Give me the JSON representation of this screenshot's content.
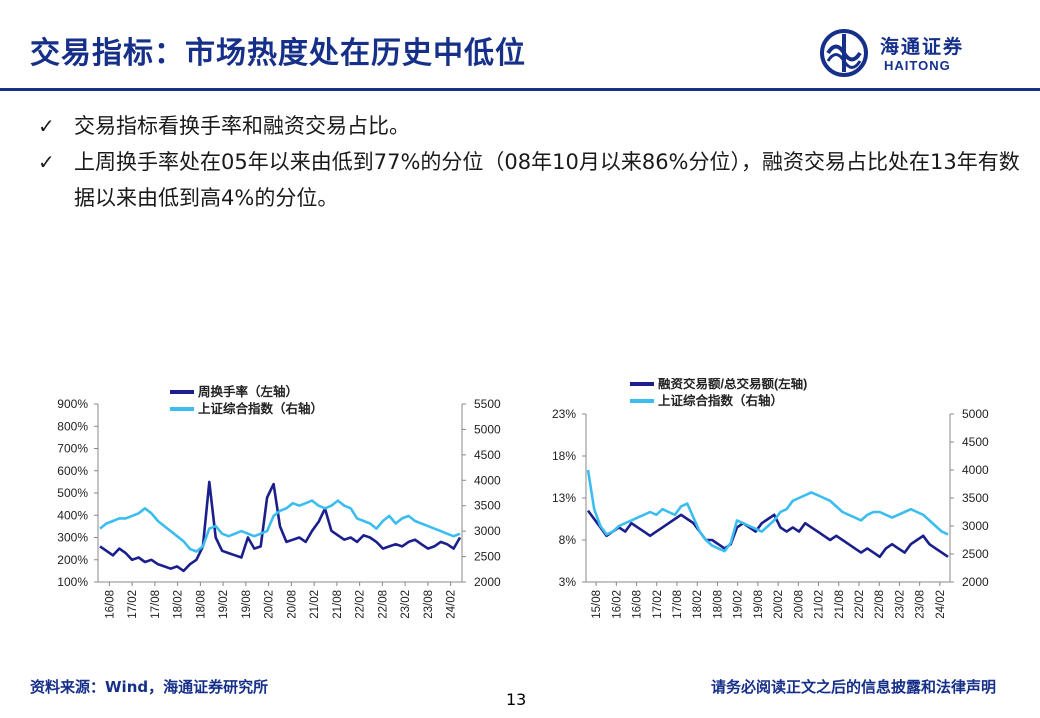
{
  "slide": {
    "title": "交易指标：市场热度处在历史中低位",
    "page_number": "13",
    "source": "资料来源：Wind，海通证券研究所",
    "disclaimer": "请务必阅读正文之后的信息披露和法律声明"
  },
  "logo": {
    "cn": "海通证券",
    "en": "HAITONG",
    "icon": "haitong-emblem-icon"
  },
  "bullets": [
    "交易指标看换手率和融资交易占比。",
    "上周换手率处在05年以来由低到77%的分位（08年10月以来86%分位），融资交易占比处在13年有数据以来由低到高4%的分位。"
  ],
  "colors": {
    "navy": "#16308a",
    "left_series": "#1a1f8c",
    "right_series": "#3bbdf0"
  },
  "chart_data": [
    {
      "type": "line",
      "legend_position": "top",
      "grid": false,
      "x_ticks": [
        "16/08",
        "17/02",
        "17/08",
        "18/02",
        "18/08",
        "19/02",
        "19/08",
        "20/02",
        "20/08",
        "21/02",
        "21/08",
        "22/02",
        "22/08",
        "23/02",
        "23/08",
        "24/02"
      ],
      "y_left_ticks": [
        "100%",
        "200%",
        "300%",
        "400%",
        "500%",
        "600%",
        "700%",
        "800%",
        "900%"
      ],
      "y_left_range": [
        100,
        900
      ],
      "y_right_ticks": [
        "2000",
        "2500",
        "3000",
        "3500",
        "4000",
        "4500",
        "5000",
        "5500"
      ],
      "y_right_range": [
        2000,
        5500
      ],
      "series": [
        {
          "name": "周换手率（左轴）",
          "axis": "left",
          "color": "#1a1f8c",
          "values": [
            260,
            240,
            220,
            250,
            230,
            200,
            210,
            190,
            200,
            180,
            170,
            160,
            170,
            150,
            180,
            200,
            260,
            550,
            300,
            240,
            230,
            220,
            210,
            300,
            250,
            260,
            480,
            540,
            350,
            280,
            290,
            300,
            280,
            330,
            370,
            430,
            330,
            310,
            290,
            300,
            280,
            310,
            300,
            280,
            250,
            260,
            270,
            260,
            280,
            290,
            270,
            250,
            260,
            280,
            270,
            250,
            300
          ]
        },
        {
          "name": "上证综合指数（右轴）",
          "axis": "right",
          "color": "#3bbdf0",
          "values": [
            3050,
            3150,
            3200,
            3250,
            3250,
            3300,
            3350,
            3450,
            3350,
            3200,
            3100,
            3000,
            2900,
            2800,
            2650,
            2600,
            2700,
            3050,
            3100,
            2950,
            2900,
            2950,
            3000,
            2950,
            2900,
            2950,
            3000,
            3300,
            3400,
            3450,
            3550,
            3500,
            3550,
            3600,
            3500,
            3450,
            3500,
            3600,
            3500,
            3450,
            3250,
            3200,
            3150,
            3050,
            3200,
            3300,
            3150,
            3250,
            3300,
            3200,
            3150,
            3100,
            3050,
            3000,
            2950,
            2900,
            2950
          ]
        }
      ]
    },
    {
      "type": "line",
      "legend_position": "top",
      "grid": false,
      "x_ticks": [
        "15/08",
        "16/02",
        "16/08",
        "17/02",
        "17/08",
        "18/02",
        "18/08",
        "19/02",
        "19/08",
        "20/02",
        "20/08",
        "21/02",
        "21/08",
        "22/02",
        "22/08",
        "23/02",
        "23/08",
        "24/02"
      ],
      "y_left_ticks": [
        "3%",
        "8%",
        "13%",
        "18%",
        "23%"
      ],
      "y_left_range": [
        3,
        23
      ],
      "y_right_ticks": [
        "2000",
        "2500",
        "3000",
        "3500",
        "4000",
        "4500",
        "5000"
      ],
      "y_right_range": [
        2000,
        5000
      ],
      "series": [
        {
          "name": "融资交易额/总交易额(左轴)",
          "axis": "left",
          "color": "#1a1f8c",
          "values": [
            11.5,
            10.5,
            9.5,
            8.5,
            9.0,
            9.5,
            9.0,
            10.0,
            9.5,
            9.0,
            8.5,
            9.0,
            9.5,
            10.0,
            10.5,
            11.0,
            10.5,
            10.0,
            9.0,
            8.0,
            8.0,
            7.5,
            7.0,
            7.5,
            9.5,
            10.0,
            9.5,
            9.0,
            10.0,
            10.5,
            11.0,
            9.5,
            9.0,
            9.5,
            9.0,
            10.0,
            9.5,
            9.0,
            8.5,
            8.0,
            8.5,
            8.0,
            7.5,
            7.0,
            6.5,
            7.0,
            6.5,
            6.0,
            7.0,
            7.5,
            7.0,
            6.5,
            7.5,
            8.0,
            8.5,
            7.5,
            7.0,
            6.5,
            6.0
          ]
        },
        {
          "name": "上证综合指数（右轴）",
          "axis": "right",
          "color": "#3bbdf0",
          "values": [
            4000,
            3300,
            3000,
            2850,
            2900,
            3000,
            3050,
            3100,
            3150,
            3200,
            3250,
            3200,
            3300,
            3250,
            3200,
            3350,
            3400,
            3150,
            2900,
            2750,
            2650,
            2600,
            2550,
            2700,
            3100,
            3050,
            3000,
            2950,
            2900,
            3000,
            3100,
            3250,
            3300,
            3450,
            3500,
            3550,
            3600,
            3550,
            3500,
            3450,
            3350,
            3250,
            3200,
            3150,
            3100,
            3200,
            3250,
            3250,
            3200,
            3150,
            3200,
            3250,
            3300,
            3250,
            3200,
            3100,
            3000,
            2900,
            2850
          ]
        }
      ]
    }
  ]
}
